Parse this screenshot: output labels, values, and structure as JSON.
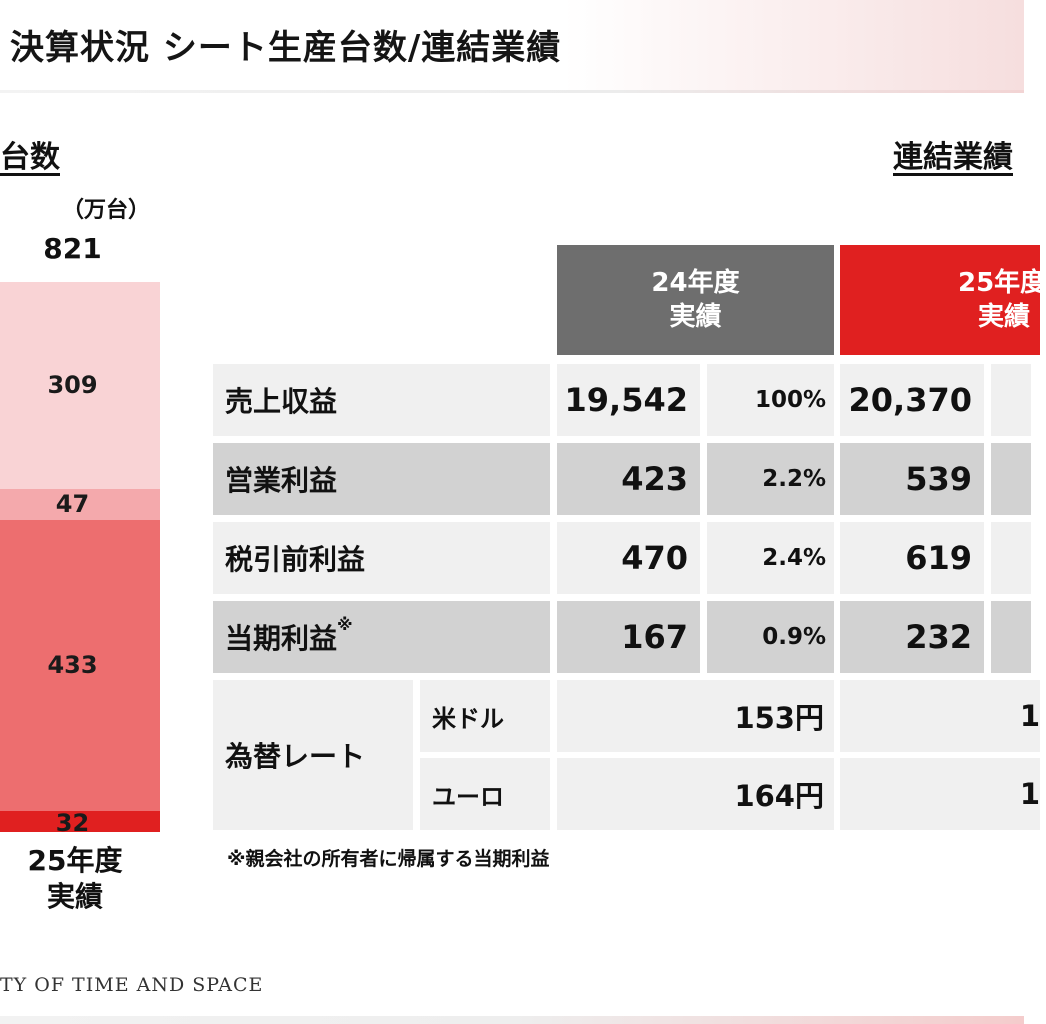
{
  "header": {
    "title": "決算状況 シート生産台数/連結業績"
  },
  "left_section": {
    "heading": "台数",
    "unit": "（万台）",
    "bar": {
      "total": "821",
      "category_line1": "25年度",
      "category_line2": "実績",
      "segments": [
        {
          "value": 309,
          "label": "309",
          "color": "#f9d3d5"
        },
        {
          "value": 47,
          "label": "47",
          "color": "#f4a9ac"
        },
        {
          "value": 433,
          "label": "433",
          "color": "#ed6e6f"
        },
        {
          "value": 32,
          "label": "32",
          "color": "#e02020"
        }
      ]
    }
  },
  "right_section": {
    "heading": "連結業績",
    "columns": [
      {
        "line1": "24年度",
        "line2": "実績",
        "color": "#6e6e6e"
      },
      {
        "line1": "25年度",
        "line2": "実績",
        "color": "#e02020"
      }
    ],
    "rows": [
      {
        "label": "売上収益",
        "fy24_value": "19,542",
        "fy24_pct": "100%",
        "fy25_value": "20,370"
      },
      {
        "label": "営業利益",
        "fy24_value": "423",
        "fy24_pct": "2.2%",
        "fy25_value": "539"
      },
      {
        "label": "税引前利益",
        "fy24_value": "470",
        "fy24_pct": "2.4%",
        "fy25_value": "619"
      },
      {
        "label": "当期利益",
        "mark": "※",
        "fy24_value": "167",
        "fy24_pct": "0.9%",
        "fy25_value": "232"
      }
    ],
    "fx": {
      "label": "為替レート",
      "items": [
        {
          "label": "米ドル",
          "fy24": "153円",
          "fy25": "1"
        },
        {
          "label": "ユーロ",
          "fy24": "164円",
          "fy25": "1"
        }
      ]
    },
    "note": "※親会社の所有者に帰属する当期利益"
  },
  "footer": {
    "text": "TY OF TIME AND SPACE"
  },
  "colors": {
    "accent": "#e02020",
    "header_gray": "#6e6e6e"
  }
}
